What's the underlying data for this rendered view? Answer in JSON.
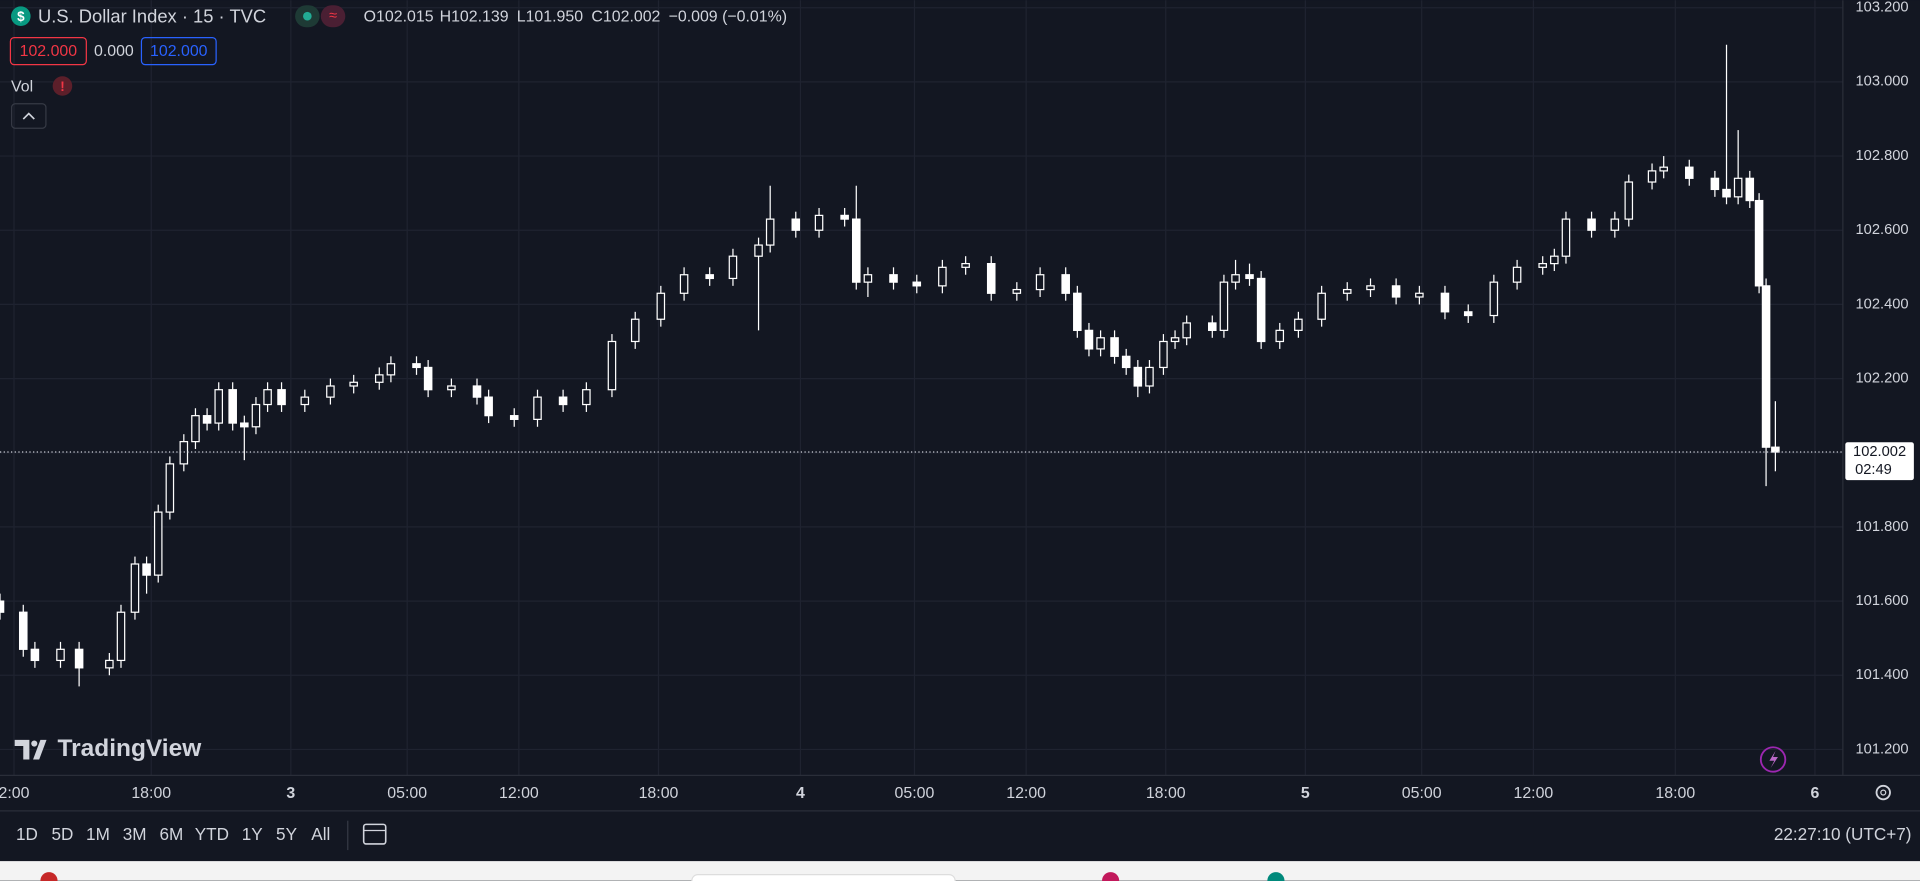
{
  "header": {
    "symbol": "U.S. Dollar Index · 15 · TVC",
    "ohlc": [
      "O102.015",
      "H102.139",
      "L101.950",
      "C102.002",
      "−0.009 (−0.01%)"
    ],
    "bid": "102.000",
    "spread": "0.000",
    "ask": "102.000",
    "volume_label": "Vol"
  },
  "watermark": "TradingView",
  "chart_data": {
    "type": "candlestick",
    "x": [
      -0.6,
      0.4,
      0.9,
      2.0,
      2.8,
      4.1,
      4.6,
      5.2,
      5.7,
      6.2,
      6.7,
      7.3,
      7.8,
      8.3,
      8.8,
      9.4,
      9.9,
      10.4,
      10.9,
      11.5,
      12.5,
      13.6,
      14.6,
      15.7,
      16.2,
      17.3,
      17.8,
      18.8,
      19.9,
      20.4,
      21.5,
      22.5,
      23.6,
      24.6,
      25.7,
      26.7,
      27.8,
      28.8,
      29.9,
      30.9,
      32.0,
      32.5,
      33.6,
      34.6,
      35.7,
      36.2,
      36.7,
      37.8,
      38.8,
      39.9,
      40.9,
      42.0,
      43.1,
      44.1,
      45.2,
      45.7,
      46.2,
      46.7,
      47.3,
      47.8,
      48.3,
      48.8,
      49.4,
      49.9,
      50.4,
      51.5,
      52.0,
      52.5,
      53.1,
      53.6,
      54.4,
      55.2,
      56.2,
      57.3,
      58.3,
      59.4,
      60.4,
      61.5,
      62.5,
      63.6,
      64.6,
      65.7,
      66.2,
      66.7,
      67.8,
      68.8,
      69.4,
      70.4,
      70.9,
      72.0,
      73.1,
      73.6,
      74.1,
      74.6,
      75.0,
      75.3,
      75.7
    ],
    "open": [
      101.6,
      101.57,
      101.47,
      101.44,
      101.47,
      101.42,
      101.44,
      101.57,
      101.7,
      101.67,
      101.84,
      101.97,
      102.03,
      102.1,
      102.08,
      102.17,
      102.08,
      102.07,
      102.13,
      102.17,
      102.13,
      102.15,
      102.18,
      102.19,
      102.21,
      102.24,
      102.23,
      102.17,
      102.18,
      102.15,
      102.1,
      102.09,
      102.15,
      102.13,
      102.17,
      102.3,
      102.36,
      102.43,
      102.48,
      102.47,
      102.53,
      102.56,
      102.63,
      102.6,
      102.64,
      102.63,
      102.46,
      102.48,
      102.46,
      102.45,
      102.5,
      102.51,
      102.43,
      102.44,
      102.48,
      102.43,
      102.33,
      102.28,
      102.31,
      102.26,
      102.23,
      102.18,
      102.23,
      102.3,
      102.31,
      102.35,
      102.33,
      102.46,
      102.48,
      102.47,
      102.3,
      102.33,
      102.36,
      102.43,
      102.44,
      102.45,
      102.42,
      102.43,
      102.38,
      102.37,
      102.46,
      102.5,
      102.51,
      102.53,
      102.63,
      102.6,
      102.63,
      102.73,
      102.76,
      102.77,
      102.74,
      102.71,
      102.69,
      102.74,
      102.68,
      102.45,
      102.015
    ],
    "high": [
      101.62,
      101.59,
      101.49,
      101.49,
      101.49,
      101.46,
      101.59,
      101.72,
      101.72,
      101.86,
      101.99,
      102.05,
      102.12,
      102.12,
      102.19,
      102.19,
      102.1,
      102.15,
      102.19,
      102.19,
      102.17,
      102.2,
      102.21,
      102.23,
      102.26,
      102.26,
      102.25,
      102.2,
      102.2,
      102.17,
      102.12,
      102.17,
      102.17,
      102.19,
      102.32,
      102.38,
      102.45,
      102.5,
      102.5,
      102.55,
      102.58,
      102.72,
      102.65,
      102.66,
      102.66,
      102.72,
      102.5,
      102.5,
      102.48,
      102.52,
      102.53,
      102.53,
      102.46,
      102.5,
      102.5,
      102.45,
      102.35,
      102.33,
      102.33,
      102.28,
      102.25,
      102.25,
      102.32,
      102.33,
      102.37,
      102.37,
      102.48,
      102.52,
      102.51,
      102.49,
      102.35,
      102.38,
      102.45,
      102.46,
      102.47,
      102.47,
      102.45,
      102.45,
      102.4,
      102.48,
      102.52,
      102.53,
      102.55,
      102.65,
      102.65,
      102.65,
      102.75,
      102.78,
      102.8,
      102.79,
      102.76,
      103.1,
      102.87,
      102.76,
      102.7,
      102.47,
      102.139
    ],
    "low": [
      101.55,
      101.45,
      101.42,
      101.42,
      101.37,
      101.4,
      101.42,
      101.55,
      101.62,
      101.65,
      101.82,
      101.95,
      102.01,
      102.06,
      102.06,
      102.06,
      101.98,
      102.05,
      102.11,
      102.11,
      102.11,
      102.13,
      102.16,
      102.17,
      102.19,
      102.21,
      102.15,
      102.15,
      102.13,
      102.08,
      102.07,
      102.07,
      102.11,
      102.11,
      102.15,
      102.28,
      102.34,
      102.41,
      102.45,
      102.45,
      102.33,
      102.54,
      102.58,
      102.58,
      102.61,
      102.44,
      102.42,
      102.44,
      102.43,
      102.43,
      102.48,
      102.41,
      102.41,
      102.42,
      102.41,
      102.31,
      102.26,
      102.26,
      102.24,
      102.21,
      102.15,
      102.16,
      102.21,
      102.28,
      102.29,
      102.31,
      102.31,
      102.44,
      102.45,
      102.28,
      102.28,
      102.31,
      102.34,
      102.41,
      102.42,
      102.4,
      102.4,
      102.36,
      102.35,
      102.35,
      102.44,
      102.48,
      102.49,
      102.51,
      102.58,
      102.58,
      102.61,
      102.71,
      102.74,
      102.72,
      102.69,
      102.67,
      102.67,
      102.66,
      102.43,
      101.91,
      101.95
    ],
    "close": [
      101.57,
      101.47,
      101.44,
      101.47,
      101.42,
      101.44,
      101.57,
      101.7,
      101.67,
      101.84,
      101.97,
      102.03,
      102.1,
      102.08,
      102.17,
      102.08,
      102.07,
      102.13,
      102.17,
      102.13,
      102.15,
      102.18,
      102.19,
      102.21,
      102.24,
      102.23,
      102.17,
      102.18,
      102.15,
      102.1,
      102.09,
      102.15,
      102.13,
      102.17,
      102.3,
      102.36,
      102.43,
      102.48,
      102.47,
      102.53,
      102.56,
      102.63,
      102.6,
      102.64,
      102.63,
      102.46,
      102.48,
      102.46,
      102.45,
      102.5,
      102.51,
      102.43,
      102.44,
      102.48,
      102.43,
      102.33,
      102.28,
      102.31,
      102.26,
      102.23,
      102.18,
      102.23,
      102.3,
      102.31,
      102.35,
      102.33,
      102.46,
      102.48,
      102.47,
      102.3,
      102.33,
      102.36,
      102.43,
      102.44,
      102.45,
      102.42,
      102.43,
      102.38,
      102.37,
      102.46,
      102.5,
      102.51,
      102.53,
      102.63,
      102.6,
      102.63,
      102.73,
      102.76,
      102.77,
      102.74,
      102.71,
      102.69,
      102.74,
      102.68,
      102.45,
      102.015,
      102.002
    ],
    "color": "#ffffff",
    "xlim": [
      -0.6,
      78.6
    ],
    "ylim": [
      101.13,
      103.22
    ],
    "xticks": [
      {
        "value": 0,
        "label": "2:00"
      },
      {
        "value": 5.9,
        "label": "18:00"
      },
      {
        "value": 11.9,
        "label": "3"
      },
      {
        "value": 16.9,
        "label": "05:00"
      },
      {
        "value": 21.7,
        "label": "12:00"
      },
      {
        "value": 27.7,
        "label": "18:00"
      },
      {
        "value": 33.8,
        "label": "4"
      },
      {
        "value": 38.7,
        "label": "05:00"
      },
      {
        "value": 43.5,
        "label": "12:00"
      },
      {
        "value": 49.5,
        "label": "18:00"
      },
      {
        "value": 55.5,
        "label": "5"
      },
      {
        "value": 60.5,
        "label": "05:00"
      },
      {
        "value": 65.3,
        "label": "12:00"
      },
      {
        "value": 71.4,
        "label": "18:00"
      },
      {
        "value": 77.4,
        "label": "6"
      }
    ],
    "yticks": [
      {
        "value": 101.2,
        "label": "101.200"
      },
      {
        "value": 101.4,
        "label": "101.400"
      },
      {
        "value": 101.6,
        "label": "101.600"
      },
      {
        "value": 101.8,
        "label": "101.800"
      },
      {
        "value": 102.0,
        "label": "102.000"
      },
      {
        "value": 102.2,
        "label": "102.200"
      },
      {
        "value": 102.4,
        "label": "102.400"
      },
      {
        "value": 102.6,
        "label": "102.600"
      },
      {
        "value": 102.8,
        "label": "102.800"
      },
      {
        "value": 103.0,
        "label": "103.000"
      },
      {
        "value": 103.2,
        "label": "103.200"
      }
    ],
    "grid": true,
    "last_price": {
      "value": 102.002,
      "label": "102.002"
    },
    "countdown": "02:49"
  },
  "footer": {
    "ranges": [
      "1D",
      "5D",
      "1M",
      "3M",
      "6M",
      "YTD",
      "1Y",
      "5Y",
      "All"
    ],
    "clock": "22:27:10 (UTC+7)"
  }
}
